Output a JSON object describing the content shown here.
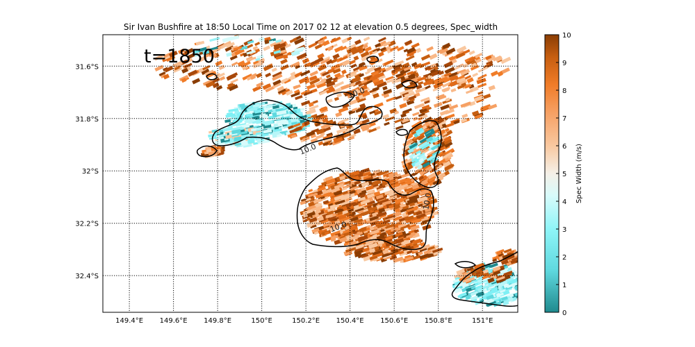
{
  "figure": {
    "title": "Sir Ivan Bushfire at 18:50 Local Time on 2017 02 12 at elevation 0.5 degrees, Spec_width",
    "time_annotation": "t=1850"
  },
  "map": {
    "lon_ticks": [
      "149.4°E",
      "149.6°E",
      "149.8°E",
      "150°E",
      "150.2°E",
      "150.4°E",
      "150.6°E",
      "150.8°E",
      "151°E"
    ],
    "lat_ticks": [
      "31.6°S",
      "31.8°S",
      "32°S",
      "32.2°S",
      "32.4°S"
    ],
    "lon_range": [
      149.28,
      151.16
    ],
    "lat_range": [
      -32.54,
      -31.48
    ],
    "gridlines": "dotted",
    "contour_label": "10.0"
  },
  "colorbar": {
    "label": "Spec Width (m/s)",
    "ticks": [
      "0",
      "1",
      "2",
      "3",
      "4",
      "5",
      "6",
      "7",
      "8",
      "9",
      "10"
    ],
    "range": [
      0,
      10
    ],
    "colors": {
      "low": "#1f8a8e",
      "cyan": "#7ff0f5",
      "mid": "#f5f0e8",
      "peach": "#f9b989",
      "orange": "#f07c28",
      "high": "#8a3d04"
    }
  }
}
